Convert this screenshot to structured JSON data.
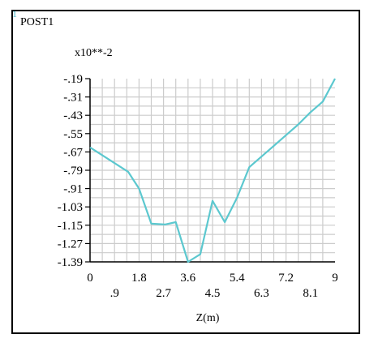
{
  "window": {
    "number": "1",
    "title": "POST1"
  },
  "chart_data": {
    "type": "line",
    "scale_label": "x10**-2",
    "xlabel": "Z(m)",
    "ylabel": "",
    "xlim": [
      0,
      9
    ],
    "ylim": [
      -1.39,
      -0.19
    ],
    "x_tick_labels_row1": [
      "0",
      "1.8",
      "3.6",
      "5.4",
      "7.2",
      "9"
    ],
    "x_tick_values_row1": [
      0,
      1.8,
      3.6,
      5.4,
      7.2,
      9
    ],
    "x_tick_labels_row2": [
      ".9",
      "2.7",
      "4.5",
      "6.3",
      "8.1"
    ],
    "x_tick_values_row2": [
      0.9,
      2.7,
      4.5,
      6.3,
      8.1
    ],
    "y_tick_labels": [
      "-.19",
      "-.31",
      "-.43",
      "-.55",
      "-.67",
      "-.79",
      "-.91",
      "-1.03",
      "-1.15",
      "-1.27",
      "-1.39"
    ],
    "y_tick_values": [
      -0.19,
      -0.31,
      -0.43,
      -0.55,
      -0.67,
      -0.79,
      -0.91,
      -1.03,
      -1.15,
      -1.27,
      -1.39
    ],
    "grid": true,
    "line_color": "#5cc8cf",
    "series": [
      {
        "x": [
          0,
          1.4,
          1.8,
          2.25,
          2.75,
          3.15,
          3.6,
          4.05,
          4.5,
          4.95,
          5.4,
          5.85,
          6.3,
          6.75,
          7.2,
          7.65,
          8.1,
          8.55,
          9.0
        ],
        "y": [
          -0.64,
          -0.8,
          -0.91,
          -1.14,
          -1.145,
          -1.13,
          -1.39,
          -1.34,
          -0.99,
          -1.13,
          -0.97,
          -0.77,
          -0.7,
          -0.63,
          -0.56,
          -0.49,
          -0.41,
          -0.34,
          -0.19
        ]
      }
    ]
  }
}
